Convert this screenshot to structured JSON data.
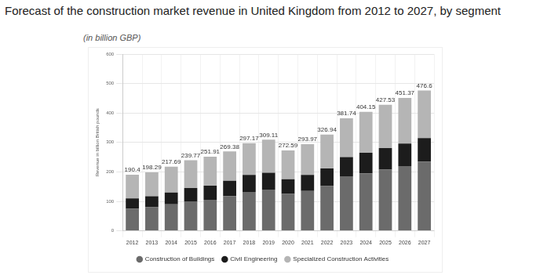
{
  "chart_data": {
    "type": "bar",
    "title": "Forecast of the construction market revenue in United Kingdom from 2012 to 2027, by segment",
    "subtitle": "(in billion GBP)",
    "y_label": "Revenue in billion British pounds",
    "categories": [
      "2012",
      "2013",
      "2014",
      "2015",
      "2016",
      "2017",
      "2018",
      "2019",
      "2020",
      "2021",
      "2022",
      "2023",
      "2024",
      "2025",
      "2026",
      "2027"
    ],
    "series": [
      {
        "name": "Construction of Buildings",
        "color": "#6b6b6b",
        "values": [
          75,
          80,
          90,
          100,
          105,
          118,
          132,
          140,
          125,
          135,
          152,
          185,
          195,
          208,
          220,
          235
        ]
      },
      {
        "name": "Civil Engineering",
        "color": "#1c1c1c",
        "values": [
          35,
          37,
          40,
          45,
          48,
          52,
          58,
          57,
          50,
          55,
          60,
          65,
          70,
          73,
          76,
          80
        ]
      },
      {
        "name": "Specialized Construction Activities",
        "color": "#b5b5b5",
        "values": [
          80.4,
          81.29,
          87.69,
          94.77,
          98.91,
          99.38,
          107.17,
          112.11,
          97.59,
          103.97,
          114.94,
          131.74,
          139.15,
          146.53,
          155.37,
          161.6
        ]
      }
    ],
    "totals": [
      190.4,
      198.29,
      217.69,
      239.77,
      251.91,
      269.38,
      297.17,
      309.11,
      272.59,
      293.97,
      326.94,
      381.74,
      404.15,
      427.53,
      451.37,
      476.6
    ],
    "ylim": [
      0,
      600
    ],
    "yticks": [
      0,
      100,
      200,
      300,
      400,
      500,
      600
    ],
    "stacked": true,
    "grid": true,
    "legend": "bottom"
  }
}
